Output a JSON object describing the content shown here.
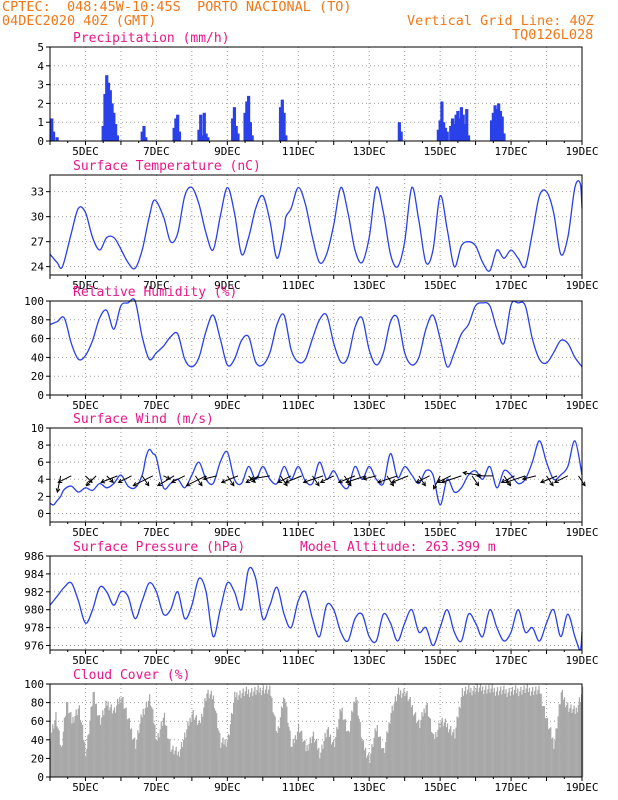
{
  "header": {
    "line1": "CPTEC:  048:45W-10:45S  PORTO NACIONAL (TO)",
    "line2": "04DEC2020 40Z (GMT)",
    "grid_line": "Vertical Grid Line: 40Z",
    "code": "TQ0126L028"
  },
  "colors": {
    "header": "#f07818",
    "title": "#e8188a",
    "series": "#2a40e8",
    "cloud": "#a8a8a8",
    "grid": "#a0a0a0"
  },
  "chart_data": [
    {
      "type": "bar",
      "title": "Precipitation (mm/h)",
      "ylim": [
        0,
        5
      ],
      "yticks": [
        "0",
        "1",
        "2",
        "3",
        "4",
        "5"
      ],
      "xlim": [
        4.0,
        19.0
      ],
      "xticks": [
        "5DEC",
        "7DEC",
        "9DEC",
        "11DEC",
        "13DEC",
        "15DEC",
        "17DEC",
        "19DEC"
      ],
      "grid": true,
      "x": [
        4.05,
        4.1,
        4.2,
        5.5,
        5.55,
        5.6,
        5.65,
        5.7,
        5.75,
        5.8,
        5.85,
        5.9,
        6.6,
        6.65,
        6.7,
        7.5,
        7.55,
        7.6,
        7.65,
        8.2,
        8.25,
        8.3,
        8.35,
        8.4,
        8.45,
        9.15,
        9.2,
        9.25,
        9.3,
        9.5,
        9.55,
        9.6,
        9.65,
        9.7,
        10.5,
        10.55,
        10.6,
        10.65,
        13.85,
        13.9,
        14.95,
        15.0,
        15.05,
        15.1,
        15.15,
        15.2,
        15.3,
        15.35,
        15.4,
        15.45,
        15.5,
        15.55,
        15.6,
        15.65,
        15.7,
        15.75,
        15.8,
        16.45,
        16.5,
        16.55,
        16.6,
        16.65,
        16.7,
        16.75,
        16.8
      ],
      "values": [
        1.2,
        0.5,
        0.2,
        0.8,
        2.5,
        3.5,
        3.1,
        2.7,
        2.0,
        1.5,
        0.9,
        0.3,
        0.5,
        0.8,
        0.2,
        0.7,
        1.2,
        1.4,
        0.5,
        0.6,
        1.4,
        0.3,
        1.5,
        0.4,
        0.2,
        1.2,
        1.8,
        0.8,
        0.4,
        1.5,
        2.1,
        2.4,
        1.0,
        0.3,
        1.8,
        2.2,
        1.5,
        0.3,
        1.0,
        0.5,
        0.6,
        1.1,
        2.1,
        1.0,
        0.7,
        0.5,
        0.8,
        1.2,
        0.9,
        1.4,
        1.6,
        1.2,
        1.8,
        1.4,
        0.9,
        1.7,
        0.3,
        1.1,
        1.5,
        1.9,
        1.7,
        2.0,
        1.6,
        1.3,
        0.4
      ]
    },
    {
      "type": "line",
      "title": "Surface Temperature (nC)",
      "ylim": [
        23,
        35
      ],
      "yticks": [
        "24",
        "27",
        "30",
        "33"
      ],
      "ytick_values": [
        24,
        27,
        30,
        33
      ],
      "xlim": [
        4.0,
        19.0
      ],
      "xticks": [
        "5DEC",
        "7DEC",
        "9DEC",
        "11DEC",
        "13DEC",
        "15DEC",
        "17DEC",
        "19DEC"
      ],
      "grid": true,
      "x": [
        4.0,
        4.2,
        4.35,
        4.6,
        4.8,
        5.0,
        5.2,
        5.4,
        5.6,
        5.8,
        5.95,
        6.2,
        6.4,
        6.6,
        6.8,
        6.95,
        7.2,
        7.4,
        7.6,
        7.8,
        8.0,
        8.2,
        8.4,
        8.6,
        8.8,
        9.0,
        9.2,
        9.4,
        9.6,
        9.8,
        10.0,
        10.2,
        10.4,
        10.6,
        10.65,
        10.8,
        11.0,
        11.2,
        11.4,
        11.6,
        11.8,
        12.0,
        12.2,
        12.4,
        12.6,
        12.8,
        13.0,
        13.2,
        13.4,
        13.6,
        13.8,
        14.0,
        14.2,
        14.4,
        14.6,
        14.8,
        15.0,
        15.2,
        15.4,
        15.6,
        15.8,
        16.0,
        16.2,
        16.4,
        16.6,
        16.8,
        17.0,
        17.2,
        17.4,
        17.6,
        17.8,
        18.0,
        18.2,
        18.4,
        18.6,
        18.8,
        18.95,
        19.0
      ],
      "values": [
        25.5,
        24.5,
        24.0,
        28.0,
        31.0,
        30.5,
        27.5,
        26.0,
        27.5,
        27.5,
        26.5,
        24.5,
        23.8,
        26.0,
        30.0,
        32.0,
        30.0,
        27.0,
        28.0,
        32.5,
        33.5,
        31.5,
        28.0,
        26.0,
        30.0,
        33.5,
        30.5,
        25.5,
        27.5,
        31.0,
        32.5,
        29.5,
        25.0,
        28.5,
        30.0,
        31.0,
        33.5,
        31.5,
        27.5,
        24.5,
        25.5,
        29.0,
        33.5,
        30.5,
        26.0,
        24.5,
        27.5,
        33.5,
        30.5,
        25.5,
        24.0,
        27.0,
        33.5,
        29.5,
        24.5,
        26.0,
        32.5,
        28.5,
        24.0,
        26.5,
        27.0,
        26.5,
        24.5,
        23.5,
        26.0,
        25.0,
        26.0,
        25.0,
        24.0,
        28.0,
        32.5,
        33.0,
        30.5,
        25.5,
        27.5,
        33.5,
        34.0,
        31.0
      ]
    },
    {
      "type": "line",
      "title": "Relative Humidity (%)",
      "ylim": [
        0,
        100
      ],
      "yticks": [
        "0",
        "20",
        "40",
        "60",
        "80",
        "100"
      ],
      "ytick_values": [
        0,
        20,
        40,
        60,
        80,
        100
      ],
      "xlim": [
        4.0,
        19.0
      ],
      "xticks": [
        "5DEC",
        "7DEC",
        "9DEC",
        "11DEC",
        "13DEC",
        "15DEC",
        "17DEC",
        "19DEC"
      ],
      "grid": true,
      "x": [
        4.0,
        4.2,
        4.4,
        4.6,
        4.8,
        5.0,
        5.2,
        5.4,
        5.6,
        5.8,
        6.0,
        6.2,
        6.4,
        6.6,
        6.8,
        7.0,
        7.2,
        7.4,
        7.6,
        7.8,
        8.0,
        8.2,
        8.4,
        8.6,
        8.8,
        9.0,
        9.2,
        9.4,
        9.6,
        9.8,
        10.0,
        10.2,
        10.4,
        10.6,
        10.8,
        11.0,
        11.2,
        11.4,
        11.6,
        11.8,
        12.0,
        12.2,
        12.4,
        12.6,
        12.8,
        13.0,
        13.2,
        13.4,
        13.6,
        13.8,
        14.0,
        14.2,
        14.4,
        14.6,
        14.8,
        15.0,
        15.2,
        15.4,
        15.6,
        15.8,
        16.0,
        16.2,
        16.4,
        16.6,
        16.8,
        17.0,
        17.2,
        17.4,
        17.6,
        17.8,
        18.0,
        18.2,
        18.4,
        18.6,
        18.8,
        19.0
      ],
      "values": [
        75,
        78,
        82,
        55,
        38,
        42,
        58,
        82,
        90,
        70,
        95,
        98,
        100,
        62,
        38,
        45,
        52,
        62,
        65,
        38,
        30,
        40,
        68,
        85,
        60,
        32,
        38,
        58,
        62,
        35,
        32,
        45,
        75,
        85,
        48,
        35,
        38,
        60,
        80,
        85,
        55,
        35,
        40,
        72,
        82,
        48,
        32,
        45,
        78,
        82,
        45,
        32,
        40,
        70,
        85,
        60,
        30,
        45,
        65,
        75,
        95,
        98,
        95,
        70,
        55,
        96,
        98,
        95,
        60,
        38,
        34,
        45,
        58,
        55,
        40,
        30
      ]
    },
    {
      "type": "line",
      "title": "Surface Wind (m/s)",
      "ylim": [
        -1,
        10
      ],
      "yticks": [
        "0",
        "2",
        "4",
        "6",
        "8",
        "10"
      ],
      "ytick_values": [
        0,
        2,
        4,
        6,
        8,
        10
      ],
      "xlim": [
        4.0,
        19.0
      ],
      "xticks": [
        "5DEC",
        "7DEC",
        "9DEC",
        "11DEC",
        "13DEC",
        "15DEC",
        "17DEC",
        "19DEC"
      ],
      "grid": true,
      "x": [
        4.0,
        4.1,
        4.2,
        4.3,
        4.4,
        4.6,
        4.8,
        5.0,
        5.2,
        5.4,
        5.6,
        5.8,
        6.0,
        6.2,
        6.4,
        6.6,
        6.7,
        6.8,
        6.9,
        7.0,
        7.2,
        7.4,
        7.6,
        7.8,
        8.0,
        8.2,
        8.4,
        8.6,
        8.8,
        9.0,
        9.2,
        9.4,
        9.6,
        9.8,
        10.0,
        10.2,
        10.4,
        10.6,
        10.8,
        11.0,
        11.2,
        11.4,
        11.6,
        11.8,
        12.0,
        12.2,
        12.4,
        12.6,
        12.8,
        13.0,
        13.2,
        13.4,
        13.6,
        13.8,
        14.0,
        14.2,
        14.4,
        14.6,
        14.8,
        15.0,
        15.2,
        15.4,
        15.6,
        15.8,
        16.0,
        16.2,
        16.4,
        16.6,
        16.8,
        17.0,
        17.2,
        17.4,
        17.6,
        17.8,
        18.0,
        18.2,
        18.4,
        18.6,
        18.8,
        19.0
      ],
      "values": [
        1.2,
        1.0,
        1.5,
        2.0,
        2.8,
        3.2,
        2.5,
        3.0,
        2.7,
        3.5,
        3.0,
        3.5,
        4.5,
        3.2,
        3.0,
        4.5,
        6.5,
        7.5,
        7.0,
        6.5,
        3.0,
        3.5,
        4.0,
        3.0,
        4.5,
        6.0,
        4.0,
        3.5,
        6.0,
        7.2,
        4.0,
        3.5,
        5.5,
        4.0,
        5.5,
        4.0,
        3.5,
        5.5,
        4.0,
        5.5,
        3.8,
        3.5,
        6.0,
        4.0,
        5.0,
        3.5,
        3.0,
        5.5,
        4.0,
        5.5,
        4.0,
        3.5,
        7.0,
        4.2,
        5.5,
        4.5,
        3.5,
        5.0,
        4.5,
        1.0,
        4.0,
        2.5,
        3.0,
        4.5,
        5.0,
        4.0,
        5.5,
        3.0,
        5.0,
        4.5,
        3.5,
        4.0,
        6.0,
        8.5,
        6.0,
        4.0,
        4.5,
        5.5,
        8.5,
        4.5
      ],
      "arrows": {
        "x": [
          4.3,
          4.6,
          5.0,
          5.3,
          5.6,
          5.9,
          6.3,
          6.6,
          6.9,
          7.2,
          7.5,
          7.8,
          8.1,
          8.4,
          8.7,
          9.0,
          9.3,
          9.6,
          9.9,
          10.2,
          10.5,
          10.8,
          11.1,
          11.4,
          11.7,
          12.0,
          12.3,
          12.6,
          12.9,
          13.2,
          13.5,
          13.8,
          14.1,
          14.4,
          14.7,
          15.0,
          15.3,
          15.6,
          15.9,
          16.2,
          16.5,
          16.8,
          17.1,
          17.4,
          17.7,
          18.0,
          18.3,
          18.6,
          18.9
        ],
        "u": [
          -0.5,
          -2,
          1,
          -1.5,
          1,
          -2.5,
          -2,
          1,
          -3,
          1,
          -2.5,
          -2,
          1,
          -3,
          -2,
          1,
          -2.5,
          1,
          -2,
          -3,
          1,
          -2,
          -2.5,
          1,
          -3,
          -2,
          1,
          -2.5,
          -3,
          -2,
          1,
          -3,
          -2.5,
          1,
          -2,
          -1,
          -2,
          -3,
          1,
          -3,
          -2.5,
          1,
          -2,
          -3,
          -2,
          1,
          -2.5,
          -2,
          1
        ],
        "v": [
          -2.5,
          -1,
          -1,
          -1.5,
          -1,
          -1,
          -1,
          -1.5,
          -1.5,
          -0.5,
          -1.5,
          -1,
          -1.5,
          -1.5,
          -0.5,
          -1.5,
          -1,
          -1,
          -1,
          -0.5,
          -1.5,
          -1,
          -1,
          -1.5,
          -1,
          -1,
          -1.5,
          -1,
          -1,
          -0.5,
          -1.5,
          -1,
          -1,
          -1.5,
          -1,
          -2,
          -1,
          -1,
          -1.5,
          0.5,
          0,
          -1.5,
          -1,
          -1,
          -0.5,
          -1.5,
          -1,
          -1,
          -1.5
        ]
      }
    },
    {
      "type": "line",
      "title": "Surface Pressure (hPa)",
      "annotation": "Model Altitude: 263.399 m",
      "ylim": [
        975.5,
        986
      ],
      "yticks": [
        "976",
        "978",
        "980",
        "982",
        "984",
        "986"
      ],
      "ytick_values": [
        976,
        978,
        980,
        982,
        984,
        986
      ],
      "xlim": [
        4.0,
        19.0
      ],
      "xticks": [
        "5DEC",
        "7DEC",
        "9DEC",
        "11DEC",
        "13DEC",
        "15DEC",
        "17DEC",
        "19DEC"
      ],
      "grid": true,
      "x": [
        4.0,
        4.2,
        4.4,
        4.6,
        4.8,
        5.0,
        5.2,
        5.4,
        5.6,
        5.8,
        6.0,
        6.2,
        6.4,
        6.6,
        6.8,
        7.0,
        7.2,
        7.4,
        7.6,
        7.8,
        8.0,
        8.2,
        8.4,
        8.6,
        8.8,
        9.0,
        9.2,
        9.4,
        9.6,
        9.8,
        10.0,
        10.2,
        10.4,
        10.6,
        10.8,
        11.0,
        11.2,
        11.4,
        11.6,
        11.8,
        12.0,
        12.2,
        12.4,
        12.6,
        12.8,
        13.0,
        13.2,
        13.4,
        13.6,
        13.8,
        14.0,
        14.2,
        14.4,
        14.6,
        14.8,
        15.0,
        15.2,
        15.4,
        15.6,
        15.8,
        16.0,
        16.2,
        16.4,
        16.6,
        16.8,
        17.0,
        17.2,
        17.4,
        17.6,
        17.8,
        18.0,
        18.2,
        18.4,
        18.6,
        18.8,
        18.95,
        19.0
      ],
      "values": [
        980.5,
        981.5,
        982.5,
        983.0,
        981.0,
        978.5,
        980.0,
        982.5,
        982.0,
        980.5,
        982.0,
        981.5,
        979.0,
        981.0,
        983.0,
        982.0,
        979.5,
        980.0,
        982.0,
        979.0,
        980.5,
        983.5,
        982.0,
        977.0,
        980.0,
        983.0,
        982.0,
        980.0,
        984.5,
        983.5,
        979.0,
        980.5,
        982.5,
        979.5,
        978.0,
        981.0,
        982.0,
        979.0,
        977.0,
        980.5,
        980.0,
        977.5,
        976.5,
        979.0,
        979.5,
        977.0,
        976.5,
        979.5,
        978.5,
        976.5,
        978.5,
        980.0,
        977.5,
        978.0,
        976.0,
        978.0,
        980.0,
        977.5,
        976.5,
        979.5,
        978.5,
        977.0,
        980.0,
        978.0,
        976.5,
        977.5,
        980.0,
        977.5,
        978.0,
        976.5,
        978.5,
        980.0,
        977.0,
        979.5,
        977.0,
        975.5,
        977.5
      ]
    },
    {
      "type": "bar",
      "title": "Cloud Cover (%)",
      "ylim": [
        0,
        100
      ],
      "yticks": [
        "0",
        "20",
        "40",
        "60",
        "80",
        "100"
      ],
      "ytick_values": [
        0,
        20,
        40,
        60,
        80,
        100
      ],
      "xlim": [
        4.0,
        19.0
      ],
      "xticks": [
        "5DEC",
        "7DEC",
        "9DEC",
        "11DEC",
        "13DEC",
        "15DEC",
        "17DEC",
        "19DEC"
      ],
      "grid": true,
      "step": 0.03,
      "profile": {
        "x": [
          4.0,
          4.15,
          4.3,
          4.45,
          4.6,
          4.8,
          5.0,
          5.2,
          5.4,
          5.6,
          5.8,
          6.0,
          6.2,
          6.4,
          6.6,
          6.8,
          7.0,
          7.2,
          7.4,
          7.6,
          7.8,
          8.0,
          8.2,
          8.4,
          8.6,
          8.8,
          9.0,
          9.2,
          9.4,
          9.6,
          9.8,
          10.0,
          10.2,
          10.4,
          10.6,
          10.8,
          11.0,
          11.2,
          11.4,
          11.6,
          11.8,
          12.0,
          12.2,
          12.4,
          12.6,
          12.8,
          13.0,
          13.2,
          13.4,
          13.6,
          13.8,
          14.0,
          14.2,
          14.4,
          14.6,
          14.8,
          15.0,
          15.2,
          15.4,
          15.6,
          15.8,
          16.0,
          16.2,
          16.4,
          16.6,
          16.8,
          17.0,
          17.2,
          17.4,
          17.6,
          17.8,
          18.0,
          18.2,
          18.4,
          18.6,
          18.8,
          19.0
        ],
        "values": [
          45,
          65,
          30,
          80,
          60,
          75,
          25,
          90,
          60,
          80,
          70,
          88,
          60,
          35,
          70,
          85,
          40,
          65,
          30,
          25,
          45,
          70,
          55,
          90,
          85,
          35,
          40,
          88,
          90,
          92,
          92,
          95,
          92,
          45,
          90,
          30,
          55,
          30,
          45,
          25,
          50,
          35,
          75,
          45,
          90,
          35,
          20,
          55,
          25,
          70,
          90,
          92,
          75,
          55,
          80,
          40,
          60,
          55,
          45,
          92,
          93,
          95,
          95,
          94,
          93,
          92,
          92,
          93,
          94,
          93,
          92,
          60,
          35,
          90,
          75,
          70,
          92
        ]
      }
    }
  ]
}
